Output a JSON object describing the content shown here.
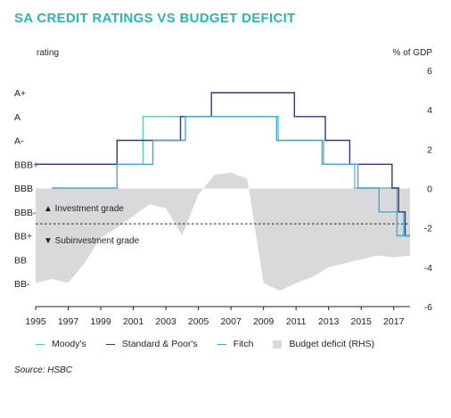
{
  "title": "SA CREDIT RATINGS VS BUDGET DEFICIT",
  "source": "Source: HSBC",
  "colors": {
    "moodys": "#5ec4bd",
    "sp": "#2e3785",
    "fitch": "#4aa6d8",
    "deficit": "#d9d9db",
    "threshold": "#231f20"
  },
  "chart_data": {
    "type": "line",
    "left_axis_label": "rating",
    "right_axis_label": "% of GDP",
    "rating_scale": [
      "BB-",
      "BB",
      "BB+",
      "BBB-",
      "BBB",
      "BBB+",
      "A-",
      "A",
      "A+"
    ],
    "xlim": [
      1995,
      2018
    ],
    "x_ticks": [
      "1995",
      "1997",
      "1999",
      "2001",
      "2003",
      "2005",
      "2007",
      "2009",
      "2011",
      "2013",
      "2015",
      "2017"
    ],
    "right_ylim": [
      -6,
      6
    ],
    "right_ticks": [
      "6",
      "4",
      "2",
      "0",
      "-2",
      "-4",
      "-6"
    ],
    "threshold_line": 2.5,
    "annotations": {
      "investment": "▲ Investment grade",
      "subinvestment": "▼ Subinvestment grade"
    },
    "series": [
      {
        "name": "Moody's",
        "color_key": "moodys",
        "points": [
          [
            1995,
            5
          ],
          [
            2001.6,
            5
          ],
          [
            2001.6,
            7.0
          ],
          [
            2005.9,
            7.0
          ],
          [
            2005.9,
            7.0
          ],
          [
            2009.9,
            7.0
          ],
          [
            2009.9,
            6.0
          ],
          [
            2012.7,
            6.0
          ],
          [
            2012.7,
            5.0
          ],
          [
            2014.6,
            5.0
          ],
          [
            2014.6,
            4.0
          ],
          [
            2017.2,
            4.0
          ],
          [
            2017.2,
            3.0
          ],
          [
            2017.6,
            3.0
          ],
          [
            2017.6,
            2.0
          ],
          [
            2018,
            2.0
          ]
        ]
      },
      {
        "name": "Standard & Poor's",
        "color_key": "sp",
        "points": [
          [
            1995,
            5
          ],
          [
            2000.0,
            5
          ],
          [
            2000.0,
            6.0
          ],
          [
            2002.0,
            6.0
          ],
          [
            2002.0,
            6.0
          ],
          [
            2003.9,
            6.0
          ],
          [
            2003.9,
            7.0
          ],
          [
            2005.8,
            7.0
          ],
          [
            2005.8,
            8.0
          ],
          [
            2010.9,
            8.0
          ],
          [
            2010.9,
            7.0
          ],
          [
            2012.8,
            7.0
          ],
          [
            2012.8,
            6.0
          ],
          [
            2014.3,
            6.0
          ],
          [
            2014.3,
            5.0
          ],
          [
            2016.9,
            5.0
          ],
          [
            2016.9,
            4.0
          ],
          [
            2017.3,
            4.0
          ],
          [
            2017.3,
            3.0
          ],
          [
            2017.7,
            3.0
          ],
          [
            2017.7,
            2.0
          ],
          [
            2018,
            2.0
          ]
        ]
      },
      {
        "name": "Fitch",
        "color_key": "fitch",
        "points": [
          [
            1996,
            4
          ],
          [
            2000.0,
            4
          ],
          [
            2000.0,
            5.0
          ],
          [
            2002.2,
            5.0
          ],
          [
            2002.2,
            6.0
          ],
          [
            2004.2,
            6.0
          ],
          [
            2004.2,
            7.0
          ],
          [
            2008.0,
            7.0
          ],
          [
            2008.0,
            7.0
          ],
          [
            2009.8,
            7.0
          ],
          [
            2009.8,
            6.0
          ],
          [
            2012.6,
            6.0
          ],
          [
            2012.6,
            5.0
          ],
          [
            2014.8,
            5.0
          ],
          [
            2014.8,
            4.0
          ],
          [
            2016.1,
            4.0
          ],
          [
            2016.1,
            3.0
          ],
          [
            2017.2,
            3.0
          ],
          [
            2017.2,
            2.0
          ],
          [
            2017.9,
            2.0
          ],
          [
            2017.9,
            2.0
          ],
          [
            2018,
            2.0
          ]
        ]
      }
    ],
    "deficit_series": {
      "name": "Budget deficit (RHS)",
      "color_key": "deficit",
      "points": [
        [
          1995,
          -4.8
        ],
        [
          1996,
          -4.6
        ],
        [
          1997,
          -4.8
        ],
        [
          1998,
          -3.8
        ],
        [
          1999,
          -2.5
        ],
        [
          2000,
          -2.0
        ],
        [
          2001,
          -1.4
        ],
        [
          2002,
          -0.8
        ],
        [
          2003,
          -1.0
        ],
        [
          2004,
          -2.4
        ],
        [
          2005,
          -0.3
        ],
        [
          2006,
          0.7
        ],
        [
          2007,
          0.8
        ],
        [
          2008,
          0.5
        ],
        [
          2009,
          -4.8
        ],
        [
          2010,
          -5.2
        ],
        [
          2011,
          -4.8
        ],
        [
          2012,
          -4.5
        ],
        [
          2013,
          -4.0
        ],
        [
          2014,
          -3.8
        ],
        [
          2015,
          -3.6
        ],
        [
          2016,
          -3.4
        ],
        [
          2017,
          -3.5
        ],
        [
          2018,
          -3.4
        ]
      ]
    }
  },
  "legend": [
    {
      "label": "Moody's",
      "color_key": "moodys",
      "kind": "line"
    },
    {
      "label": "Standard & Poor's",
      "color_key": "sp",
      "kind": "line"
    },
    {
      "label": "Fitch",
      "color_key": "fitch",
      "kind": "line"
    },
    {
      "label": "Budget deficit (RHS)",
      "color_key": "deficit",
      "kind": "box"
    }
  ]
}
